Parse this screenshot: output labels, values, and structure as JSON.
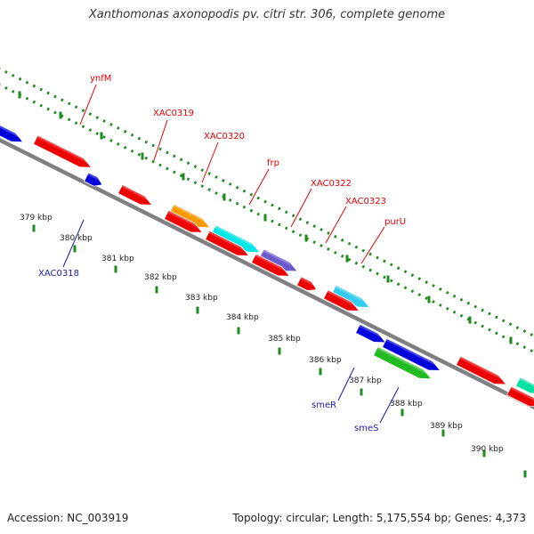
{
  "title": "Xanthomonas axonopodis pv. citri str. 306, complete genome",
  "footer": {
    "accession": "Accession: NC_003919",
    "topology": "Topology: circular; Length: 5,175,554 bp; Genes: 4,373"
  },
  "ticks": [
    "379 kbp",
    "380 kbp",
    "381 kbp",
    "382 kbp",
    "383 kbp",
    "384 kbp",
    "385 kbp",
    "386 kbp",
    "387 kbp",
    "388 kbp",
    "389 kbp",
    "390 kbp"
  ],
  "gene_labels": {
    "forward": [
      "ynfM",
      "XAC0319",
      "XAC0320",
      "frp",
      "XAC0322",
      "XAC0323",
      "purU"
    ],
    "reverse": [
      "XAC0318",
      "smeR",
      "smeS"
    ]
  },
  "colors": {
    "forward_label": "#e60000",
    "reverse_label": "#1a1aa8",
    "backbone": "#808080",
    "ruler": "#1e8c1e",
    "red": "#ee0000",
    "blue": "#0000dd",
    "orange": "#ff9900",
    "cyan": "#00e5e5",
    "purple": "#6a5acd",
    "skyblue": "#33ccee",
    "green": "#22bb22",
    "teal": "#00e0a0"
  }
}
